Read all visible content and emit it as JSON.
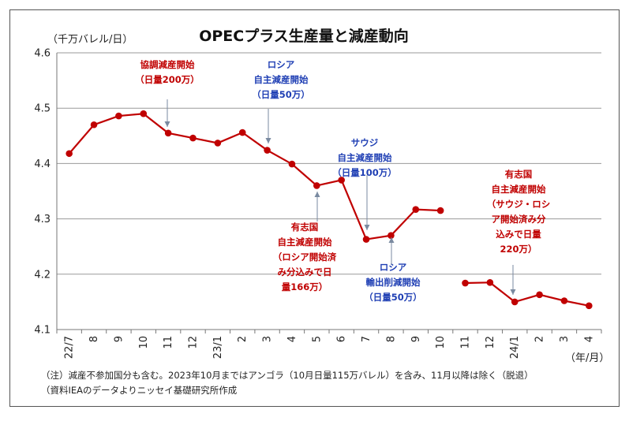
{
  "chart_data": {
    "type": "line",
    "title": "OPECプラス生産量と減産動向",
    "ylabel": "（千万バレル/日）",
    "xlabel": "（年/月）",
    "ylim": [
      4.1,
      4.6
    ],
    "yticks": [
      "4.1",
      "4.2",
      "4.3",
      "4.4",
      "4.5",
      "4.6"
    ],
    "categories": [
      "22/7",
      "8",
      "9",
      "10",
      "11",
      "12",
      "23/1",
      "2",
      "3",
      "4",
      "5",
      "6",
      "7",
      "8",
      "9",
      "10",
      "11",
      "12",
      "24/1",
      "2",
      "3",
      "4"
    ],
    "series": [
      {
        "color": "#c00000",
        "values": [
          4.418,
          4.47,
          4.486,
          4.49,
          4.455,
          4.446,
          4.437,
          4.456,
          4.424,
          4.399,
          4.36,
          4.37,
          4.263,
          4.27,
          4.317,
          4.315,
          4.184,
          4.185,
          4.15,
          4.163,
          4.152,
          4.143
        ]
      }
    ],
    "break_after_index": 15,
    "grid": "horizontal",
    "annotations": [
      {
        "lines": [
          "協調減産開始",
          "（日量200万）"
        ],
        "color": "#c00000",
        "at": "11"
      },
      {
        "lines": [
          "ロシア",
          "自主減産開始",
          "（日量50万）"
        ],
        "color": "#1f3fb4",
        "at": "3"
      },
      {
        "lines": [
          "サウジ",
          "自主減産開始",
          "（日量100万）"
        ],
        "color": "#1f3fb4",
        "at": "7"
      },
      {
        "lines": [
          "有志国",
          "自主減産開始",
          "（ロシア開始済",
          "み分込みで日",
          "量166万）"
        ],
        "color": "#c00000",
        "at": "5"
      },
      {
        "lines": [
          "ロシア",
          "輸出削減開始",
          "（日量50万）"
        ],
        "color": "#1f3fb4",
        "at": "8"
      },
      {
        "lines": [
          "有志国",
          "自主減産開始",
          "（サウジ・ロシ",
          "ア開始済み分",
          "込みで日量",
          "220万）"
        ],
        "color": "#c00000",
        "at": "24/1"
      }
    ]
  },
  "notes": [
    "（注）減産不参加国分も含む。2023年10月まではアンゴラ（10月日量115万バレル）を含み、11月以降は除く（脱退）",
    "（資料IEAのデータよりニッセイ基礎研究所作成"
  ]
}
